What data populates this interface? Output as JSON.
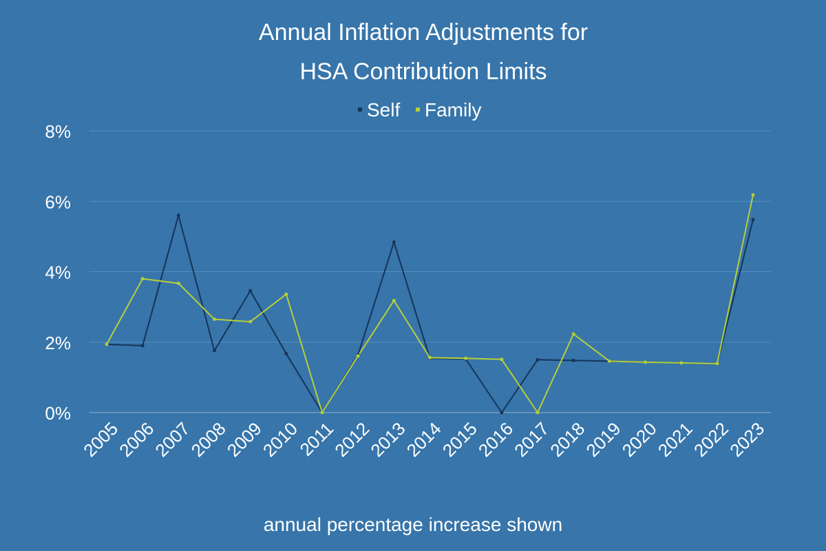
{
  "chart_data": {
    "type": "line",
    "title_lines": [
      "Annual Inflation Adjustments for",
      "HSA Contribution Limits"
    ],
    "xlabel": "annual percentage increase shown",
    "ylabel": "",
    "ylim": [
      0,
      8
    ],
    "yticks": [
      "0%",
      "2%",
      "4%",
      "6%",
      "8%"
    ],
    "grid": true,
    "legend_position": "top-center",
    "categories": [
      "2005",
      "2006",
      "2007",
      "2008",
      "2009",
      "2010",
      "2011",
      "2012",
      "2013",
      "2014",
      "2015",
      "2016",
      "2017",
      "2018",
      "2019",
      "2020",
      "2021",
      "2022",
      "2023"
    ],
    "series": [
      {
        "name": "Self",
        "color": "#16345a",
        "values": [
          1.94,
          1.9,
          5.6,
          1.76,
          3.46,
          1.67,
          0.0,
          1.64,
          4.84,
          1.54,
          1.52,
          0.0,
          1.5,
          1.48,
          1.46,
          1.43,
          1.41,
          1.39,
          5.48
        ]
      },
      {
        "name": "Family",
        "color": "#b7cf3a",
        "values": [
          1.94,
          3.8,
          3.67,
          2.65,
          2.58,
          3.36,
          0.0,
          1.61,
          3.18,
          1.56,
          1.54,
          1.51,
          0.0,
          2.23,
          1.46,
          1.43,
          1.41,
          1.39,
          6.18
        ]
      }
    ]
  }
}
